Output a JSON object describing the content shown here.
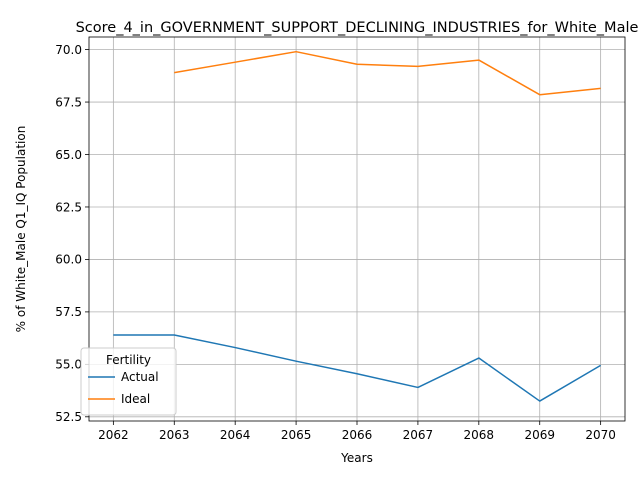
{
  "chart_data": {
    "type": "line",
    "title": "Score_4_in_GOVERNMENT_SUPPORT_DECLINING_INDUSTRIES_for_White_Male",
    "xlabel": "Years",
    "ylabel": "% of White_Male Q1_IQ Population",
    "x_ticks": [
      "2062",
      "2063",
      "2064",
      "2065",
      "2066",
      "2067",
      "2068",
      "2069",
      "2070"
    ],
    "y_ticks": [
      "52.5",
      "55.0",
      "57.5",
      "60.0",
      "62.5",
      "65.0",
      "67.5",
      "70.0"
    ],
    "xlim": [
      2061.6,
      2070.4
    ],
    "ylim": [
      52.3,
      70.6
    ],
    "grid": true,
    "legend": {
      "title": "Fertility",
      "placement": "lower-left"
    },
    "series": [
      {
        "name": "Actual",
        "color": "#1f77b4",
        "x": [
          2062,
          2063,
          2064,
          2065,
          2066,
          2067,
          2068,
          2069,
          2070
        ],
        "values": [
          56.4,
          56.4,
          55.8,
          55.15,
          54.55,
          53.9,
          55.3,
          53.25,
          54.95
        ]
      },
      {
        "name": "Ideal",
        "color": "#ff7f0e",
        "x": [
          2063,
          2064,
          2065,
          2066,
          2067,
          2068,
          2069,
          2070
        ],
        "values": [
          68.9,
          69.4,
          69.9,
          69.3,
          69.2,
          69.5,
          67.85,
          68.15
        ]
      }
    ]
  }
}
